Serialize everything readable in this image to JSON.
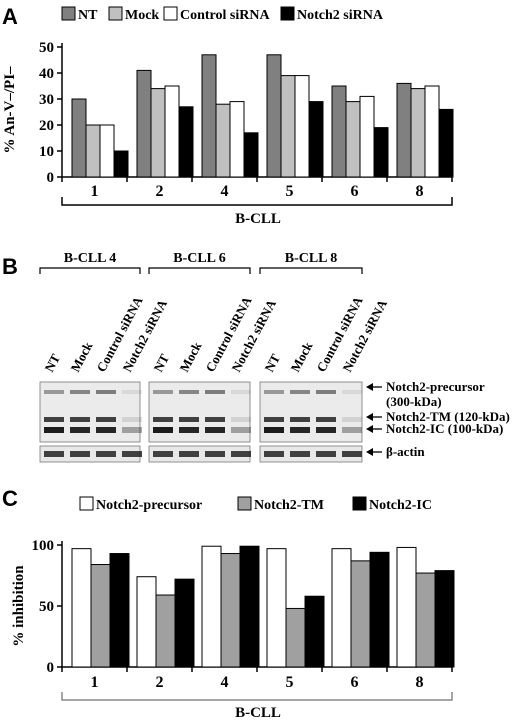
{
  "panels": {
    "a": "A",
    "b": "B",
    "c": "C"
  },
  "chart_data": [
    {
      "type": "bar",
      "panel": "A",
      "ylabel": "% An-V–/PI–",
      "xlabel": "B-CLL",
      "categories": [
        "1",
        "2",
        "4",
        "5",
        "6",
        "8"
      ],
      "ylim": [
        0,
        50
      ],
      "yticks": [
        "0",
        "10",
        "20",
        "30",
        "40",
        "50"
      ],
      "legend_position": "top",
      "grid": false,
      "series": [
        {
          "name": "NT",
          "color": "#808080",
          "values": [
            30,
            41,
            47,
            47,
            35,
            36
          ]
        },
        {
          "name": "Mock",
          "color": "#c0c0c0",
          "values": [
            20,
            34,
            28,
            39,
            29,
            34
          ]
        },
        {
          "name": "Control siRNA",
          "color": "#ffffff",
          "values": [
            20,
            35,
            29,
            39,
            31,
            35
          ]
        },
        {
          "name": "Notch2 siRNA",
          "color": "#000000",
          "values": [
            10,
            27,
            17,
            29,
            19,
            26
          ]
        }
      ]
    },
    {
      "type": "bar",
      "panel": "C",
      "ylabel": "% inhibition",
      "xlabel": "B-CLL",
      "categories": [
        "1",
        "2",
        "4",
        "5",
        "6",
        "8"
      ],
      "ylim": [
        0,
        100
      ],
      "yticks": [
        "0",
        "50",
        "100"
      ],
      "legend_position": "top",
      "grid": false,
      "series": [
        {
          "name": "Notch2-precursor",
          "color": "#ffffff",
          "values": [
            97,
            74,
            99,
            97,
            97,
            98
          ]
        },
        {
          "name": "Notch2-TM",
          "color": "#a0a0a0",
          "values": [
            84,
            59,
            93,
            48,
            87,
            77
          ]
        },
        {
          "name": "Notch2-IC",
          "color": "#000000",
          "values": [
            93,
            72,
            99,
            58,
            94,
            79
          ]
        }
      ]
    }
  ],
  "blot": {
    "groups": [
      "B-CLL 4",
      "B-CLL  6",
      "B-CLL 8"
    ],
    "lanes": [
      "NT",
      "Mock",
      "Control siRNA",
      "Notch2 siRNA"
    ],
    "bands": [
      {
        "label": "Notch2-precursor",
        "sub": "(300-kDa)"
      },
      {
        "label": "Notch2-TM (120-kDa)"
      },
      {
        "label": "Notch2-IC (100-kDa)"
      },
      {
        "label": "β-actin"
      }
    ]
  }
}
